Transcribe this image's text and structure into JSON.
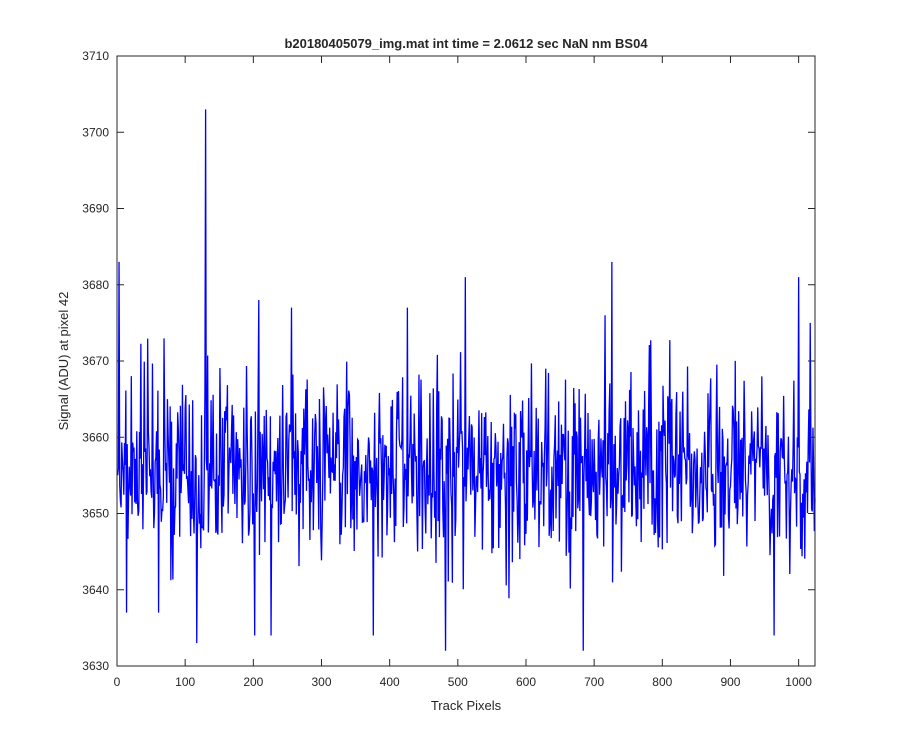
{
  "chart_data": {
    "type": "line",
    "title": "b20180405079_img.mat int time = 2.0612 sec  NaN nm BS04",
    "xlabel": "Track Pixels",
    "ylabel": "Signal (ADU) at pixel 42",
    "xlim": [
      0,
      1024
    ],
    "ylim": [
      3630,
      3710
    ],
    "xticks": [
      0,
      100,
      200,
      300,
      400,
      500,
      600,
      700,
      800,
      900,
      1000
    ],
    "yticks": [
      3630,
      3640,
      3650,
      3660,
      3670,
      3680,
      3690,
      3700,
      3710
    ],
    "xtick_labels": [
      "0",
      "100",
      "200",
      "300",
      "400",
      "500",
      "600",
      "700",
      "800",
      "900",
      "1000"
    ],
    "ytick_labels": [
      "3630",
      "3640",
      "3650",
      "3660",
      "3670",
      "3680",
      "3690",
      "3700",
      "3710"
    ],
    "grid": false,
    "legend": "none",
    "series": [
      {
        "color": "#0000ff",
        "n_points": 1024,
        "baseline": 3656,
        "noise_std": 6,
        "notable_points": [
          {
            "x": 2,
            "y": 3683
          },
          {
            "x": 13,
            "y": 3637
          },
          {
            "x": 60,
            "y": 3637
          },
          {
            "x": 116,
            "y": 3633
          },
          {
            "x": 129,
            "y": 3703
          },
          {
            "x": 201,
            "y": 3634
          },
          {
            "x": 207,
            "y": 3678
          },
          {
            "x": 225,
            "y": 3634
          },
          {
            "x": 255,
            "y": 3677
          },
          {
            "x": 375,
            "y": 3634
          },
          {
            "x": 425,
            "y": 3677
          },
          {
            "x": 481,
            "y": 3632
          },
          {
            "x": 510,
            "y": 3681
          },
          {
            "x": 683,
            "y": 3632
          },
          {
            "x": 725,
            "y": 3683
          },
          {
            "x": 963,
            "y": 3634
          },
          {
            "x": 999,
            "y": 3681
          },
          {
            "x": 1016,
            "y": 3675
          }
        ]
      }
    ]
  }
}
